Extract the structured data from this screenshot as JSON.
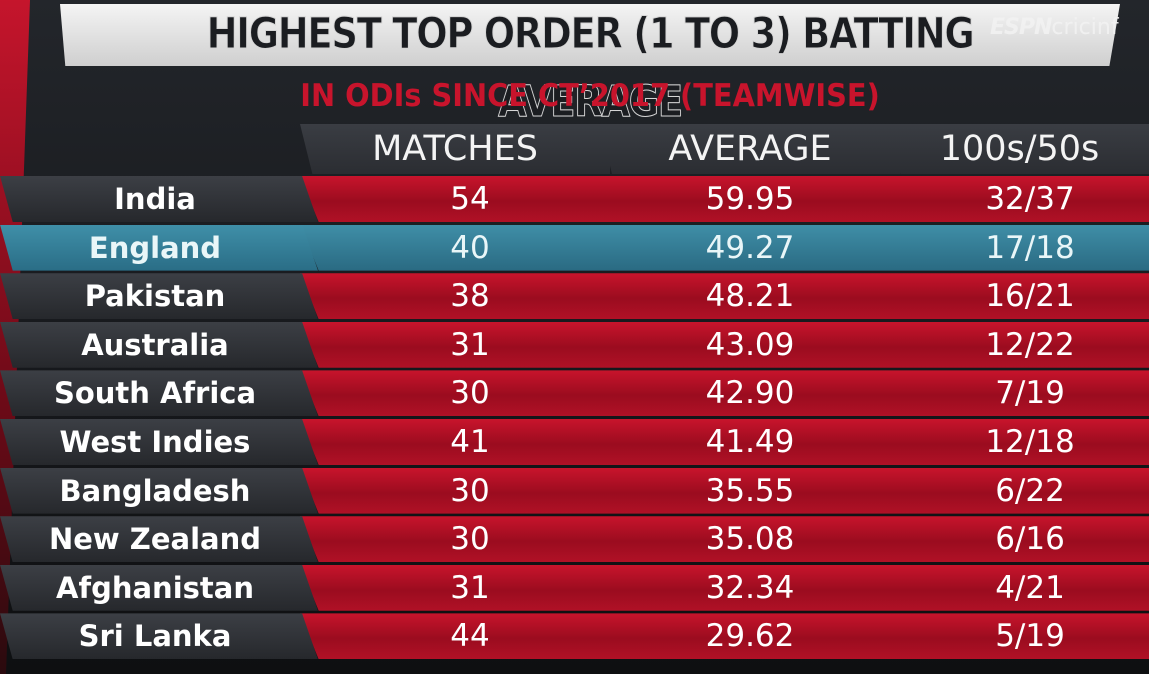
{
  "title": "HIGHEST TOP ORDER (1 TO 3) BATTING AVERAGE",
  "subtitle": "IN ODIs SINCE CT’2017 (TEAMWISE)",
  "logo": {
    "espn": "ESPN",
    "rest": "cricinf"
  },
  "columns": [
    "MATCHES",
    "AVERAGE",
    "100s/50s"
  ],
  "rows": [
    {
      "team": "India",
      "matches": "54",
      "average": "59.95",
      "hundreds_fifties": "32/37"
    },
    {
      "team": "England",
      "matches": "40",
      "average": "49.27",
      "hundreds_fifties": "17/18"
    },
    {
      "team": "Pakistan",
      "matches": "38",
      "average": "48.21",
      "hundreds_fifties": "16/21"
    },
    {
      "team": "Australia",
      "matches": "31",
      "average": "43.09",
      "hundreds_fifties": "12/22"
    },
    {
      "team": "South Africa",
      "matches": "30",
      "average": "42.90",
      "hundreds_fifties": "7/19"
    },
    {
      "team": "West Indies",
      "matches": "41",
      "average": "41.49",
      "hundreds_fifties": "12/18"
    },
    {
      "team": "Bangladesh",
      "matches": "30",
      "average": "35.55",
      "hundreds_fifties": "6/22"
    },
    {
      "team": "New Zealand",
      "matches": "30",
      "average": "35.08",
      "hundreds_fifties": "6/16"
    },
    {
      "team": "Afghanistan",
      "matches": "31",
      "average": "32.34",
      "hundreds_fifties": "4/21"
    },
    {
      "team": "Sri Lanka",
      "matches": "44",
      "average": "29.62",
      "hundreds_fifties": "5/19"
    }
  ],
  "highlighted_team": "England",
  "colors": {
    "row_red": "#c8142c",
    "highlight_teal": "#3f8ea7",
    "team_cell_dark": "#2b2d32",
    "subtitle_red": "#c8142c"
  }
}
